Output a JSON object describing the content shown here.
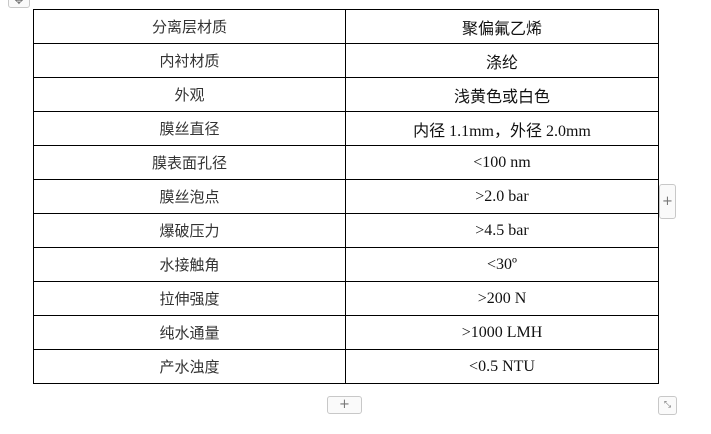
{
  "table": {
    "rows": [
      {
        "label": "分离层材质",
        "value": "聚偏氟乙烯"
      },
      {
        "label": "内衬材质",
        "value": "涤纶"
      },
      {
        "label": "外观",
        "value": "浅黄色或白色"
      },
      {
        "label": "膜丝直径",
        "value": "内径 1.1mm，外径 2.0mm"
      },
      {
        "label": "膜表面孔径",
        "value": "<100 nm"
      },
      {
        "label": "膜丝泡点",
        "value": ">2.0 bar"
      },
      {
        "label": "爆破压力",
        "value": ">4.5 bar"
      },
      {
        "label": "水接触角",
        "value": "<30º"
      },
      {
        "label": "拉伸强度",
        "value": ">200 N"
      },
      {
        "label": "纯水通量",
        "value": ">1000 LMH"
      },
      {
        "label": "产水浊度",
        "value": "<0.5 NTU"
      }
    ]
  },
  "controls": {
    "add_row_icon": "plus-icon",
    "add_column_icon": "plus-icon",
    "resize_icon": "resize-icon",
    "move_icon": "move-icon",
    "add_symbol": "+",
    "move_symbol": "✥",
    "resize_symbol": "⤡"
  }
}
